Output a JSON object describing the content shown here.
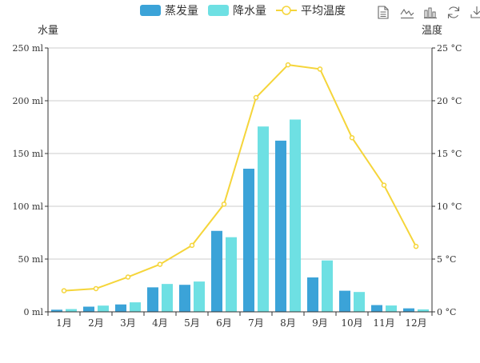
{
  "colors": {
    "evaporation": "#3ba3d8",
    "precipitation": "#6ee0e3",
    "temperature": "#f5d53a",
    "axis": "#333333",
    "grid": "#cccccc",
    "toolbox": "#666666"
  },
  "toolbox": [
    {
      "name": "data-view-icon"
    },
    {
      "name": "line-chart-icon"
    },
    {
      "name": "bar-chart-icon"
    },
    {
      "name": "restore-icon"
    },
    {
      "name": "save-image-icon"
    }
  ],
  "chart_data": {
    "type": "bar",
    "title": "",
    "categories": [
      "1月",
      "2月",
      "3月",
      "4月",
      "5月",
      "6月",
      "7月",
      "8月",
      "9月",
      "10月",
      "11月",
      "12月"
    ],
    "series": [
      {
        "name": "蒸发量",
        "type": "bar",
        "axis": "left",
        "values": [
          2.0,
          4.9,
          7.0,
          23.2,
          25.6,
          76.7,
          135.6,
          162.2,
          32.6,
          20.0,
          6.4,
          3.3
        ]
      },
      {
        "name": "降水量",
        "type": "bar",
        "axis": "left",
        "values": [
          2.6,
          5.9,
          9.0,
          26.4,
          28.7,
          70.7,
          175.6,
          182.2,
          48.7,
          18.8,
          6.0,
          2.3
        ]
      },
      {
        "name": "平均温度",
        "type": "line",
        "axis": "right",
        "values": [
          2.0,
          2.2,
          3.3,
          4.5,
          6.3,
          10.2,
          20.3,
          23.4,
          23.0,
          16.5,
          12.0,
          6.2
        ]
      }
    ],
    "y_left": {
      "label": "水量",
      "min": 0,
      "max": 250,
      "ticks": [
        "0 ml",
        "50 ml",
        "100 ml",
        "150 ml",
        "200 ml",
        "250 ml"
      ]
    },
    "y_right": {
      "label": "温度",
      "min": 0,
      "max": 25,
      "ticks": [
        "0 °C",
        "5 °C",
        "10 °C",
        "15 °C",
        "20 °C",
        "25 °C"
      ]
    },
    "grid": true,
    "legend_position": "top-center"
  }
}
